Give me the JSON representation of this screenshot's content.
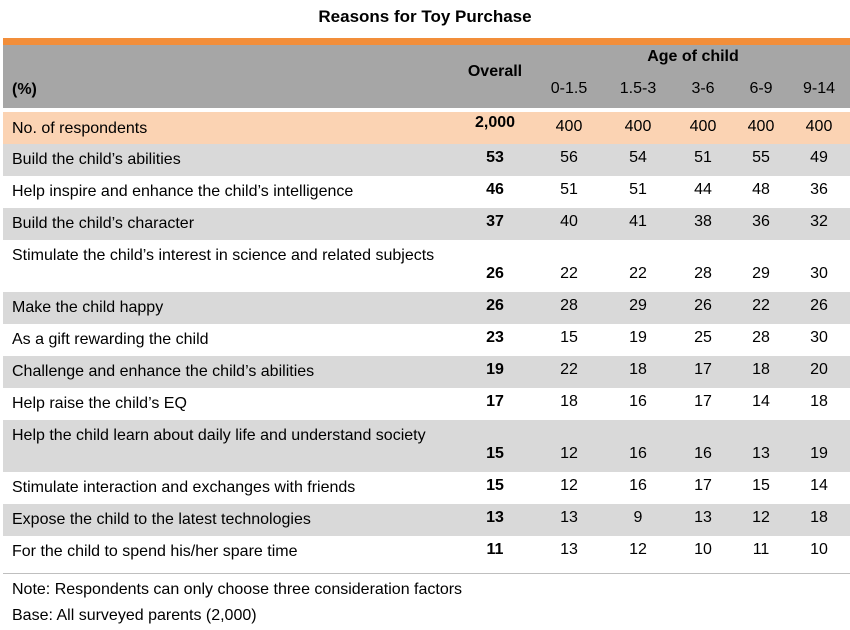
{
  "title": "Reasons for Toy Purchase",
  "colors": {
    "accent_bar": "#f28e3a",
    "header_bg": "#a6a6a6",
    "respondents_bg": "#fbd3b3",
    "stripe_bg": "#d9d9d9",
    "plain_bg": "#ffffff"
  },
  "header": {
    "unit_label": "(%)",
    "overall_label": "Overall",
    "age_label": "Age of child",
    "age_groups": [
      "0-1.5",
      "1.5-3",
      "3-6",
      "6-9",
      "9-14"
    ]
  },
  "chart_data": {
    "type": "table",
    "title": "Reasons for Toy Purchase",
    "columns": [
      "Overall",
      "0-1.5",
      "1.5-3",
      "3-6",
      "6-9",
      "9-14"
    ],
    "respondents": {
      "label": "No. of respondents",
      "overall": "2,000",
      "values": [
        "400",
        "400",
        "400",
        "400",
        "400"
      ]
    },
    "rows": [
      {
        "label": "Build the child’s abilities",
        "overall": 53,
        "values": [
          56,
          54,
          51,
          55,
          49
        ]
      },
      {
        "label": "Help inspire and enhance the child’s intelligence",
        "overall": 46,
        "values": [
          51,
          51,
          44,
          48,
          36
        ]
      },
      {
        "label": "Build the child’s character",
        "overall": 37,
        "values": [
          40,
          41,
          38,
          36,
          32
        ]
      },
      {
        "label": "Stimulate the child’s interest in science and related subjects",
        "overall": 26,
        "values": [
          22,
          22,
          28,
          29,
          30
        ]
      },
      {
        "label": "Make the child happy",
        "overall": 26,
        "values": [
          28,
          29,
          26,
          22,
          26
        ]
      },
      {
        "label": "As a gift rewarding the child",
        "overall": 23,
        "values": [
          15,
          19,
          25,
          28,
          30
        ]
      },
      {
        "label": "Challenge and enhance the child’s abilities",
        "overall": 19,
        "values": [
          22,
          18,
          17,
          18,
          20
        ]
      },
      {
        "label": "Help raise the child’s EQ",
        "overall": 17,
        "values": [
          18,
          16,
          17,
          14,
          18
        ]
      },
      {
        "label": "Help the child learn about daily life and understand society",
        "overall": 15,
        "values": [
          12,
          16,
          16,
          13,
          19
        ]
      },
      {
        "label": "Stimulate interaction and exchanges with friends",
        "overall": 15,
        "values": [
          12,
          16,
          17,
          15,
          14
        ]
      },
      {
        "label": "Expose the child to the latest technologies",
        "overall": 13,
        "values": [
          13,
          9,
          13,
          12,
          18
        ]
      },
      {
        "label": "For the child to spend his/her spare time",
        "overall": 11,
        "values": [
          13,
          12,
          10,
          11,
          10
        ]
      }
    ]
  },
  "notes": [
    "Note: Respondents can only choose three consideration factors",
    "Base: All surveyed parents (2,000)"
  ]
}
